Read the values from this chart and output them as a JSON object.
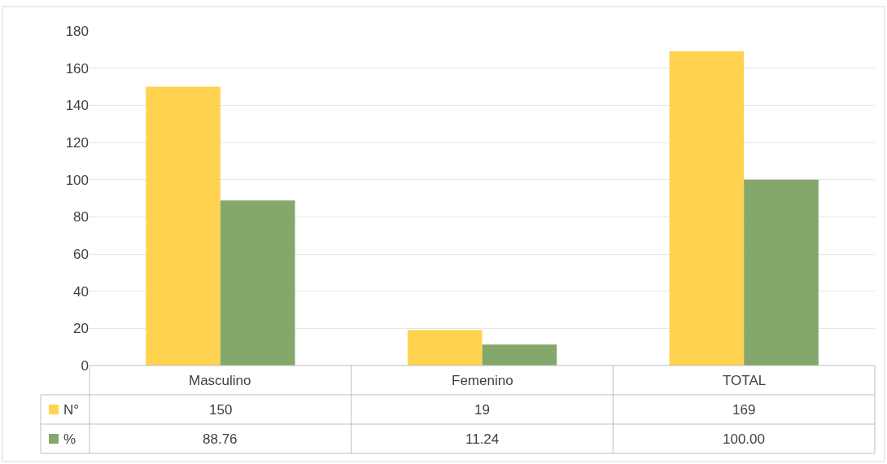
{
  "chart_data": {
    "type": "bar",
    "categories": [
      "Masculino",
      "Femenino",
      "TOTAL"
    ],
    "series": [
      {
        "name": "N°",
        "color": "#ffd34f",
        "values": [
          150,
          19,
          169
        ],
        "value_labels": [
          "150",
          "19",
          "169"
        ]
      },
      {
        "name": "%",
        "color": "#84a86c",
        "values": [
          88.76,
          11.24,
          100
        ],
        "value_labels": [
          "88.76",
          "11.24",
          "100.00"
        ]
      }
    ],
    "ylim": [
      0,
      180
    ],
    "yticks": [
      0,
      20,
      40,
      60,
      80,
      100,
      120,
      140,
      160,
      180
    ],
    "grid": "y",
    "legend": "bottom"
  }
}
